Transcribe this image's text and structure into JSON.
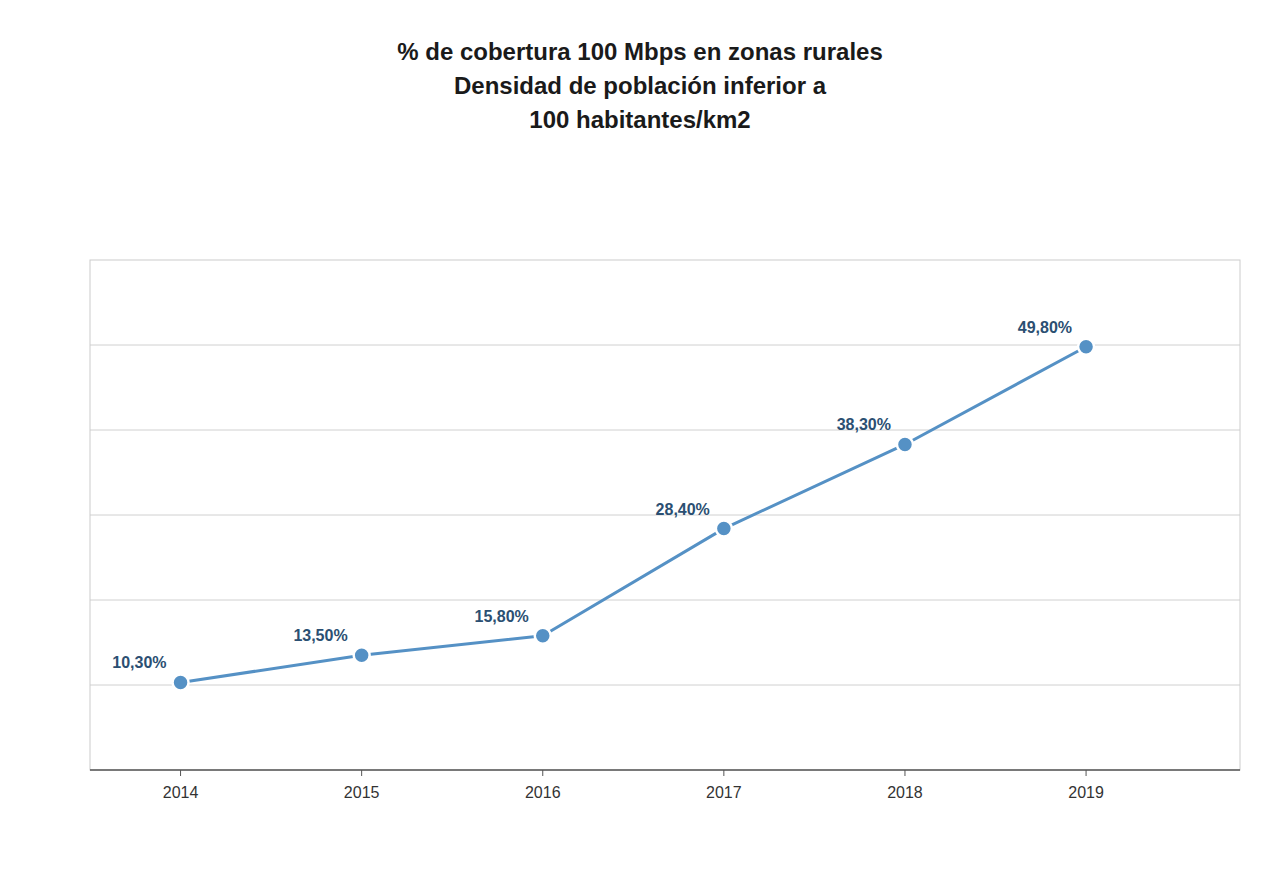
{
  "chart_data": {
    "type": "line",
    "title": "% de cobertura 100 Mbps en zonas rurales\nDensidad de población inferior a\n100 habitantes/km2",
    "x": [
      2014,
      2015,
      2016,
      2017,
      2018,
      2019
    ],
    "values": [
      10.3,
      13.5,
      15.8,
      28.4,
      38.3,
      49.8
    ],
    "value_labels": [
      "10,30%",
      "13,50%",
      "15,80%",
      "28,40%",
      "38,30%",
      "49,80%"
    ],
    "color": "#5591c5",
    "marker": "circle",
    "data_labels": true,
    "xlim": [
      2013.5,
      2019.85
    ],
    "xticks": [
      2014,
      2015,
      2016,
      2017,
      2018,
      2019
    ],
    "ylim": [
      0,
      60
    ],
    "yticks": [
      10,
      20,
      30,
      40,
      50
    ],
    "grid": true,
    "tick_labels": "x"
  }
}
